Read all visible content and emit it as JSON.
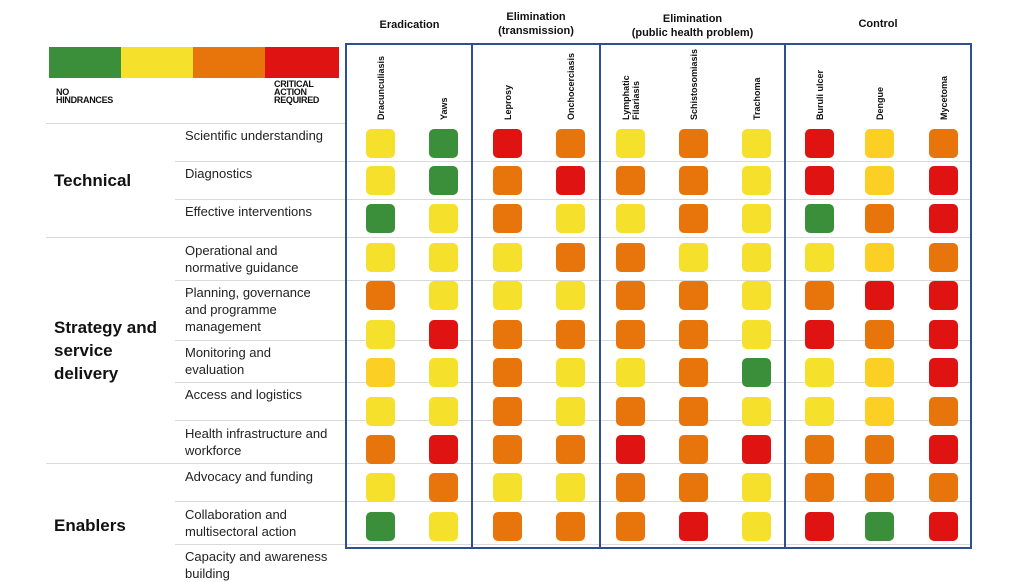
{
  "colors": {
    "green": "#3b8f3a",
    "yellow": "#f5e12c",
    "amber": "#fbcf24",
    "orange": "#e8750c",
    "red": "#e01313",
    "frame": "#2f4f8f"
  },
  "legend": {
    "swatches": [
      "green",
      "yellow",
      "orange",
      "red"
    ],
    "low_label": "NO HINDRANCES",
    "high_label": "CRITICAL ACTION REQUIRED"
  },
  "chart_data": {
    "type": "heatmap",
    "groups": [
      {
        "title": "Eradication",
        "columns": [
          "Dracunculiasis",
          "Yaws"
        ]
      },
      {
        "title": "Elimination (transmission)",
        "columns": [
          "Leprosy",
          "Onchocerciasis"
        ]
      },
      {
        "title": "Elimination (public health problem)",
        "columns": [
          "Lymphatic Filariasis",
          "Schistosomiasis",
          "Trachoma"
        ]
      },
      {
        "title": "Control",
        "columns": [
          "Buruli ulcer",
          "Dengue",
          "Mycetoma"
        ]
      }
    ],
    "categories": [
      {
        "title": "Technical",
        "rows": [
          "Scientific understanding",
          "Diagnostics",
          "Effective interventions"
        ]
      },
      {
        "title": "Strategy and service delivery",
        "rows": [
          "Operational and normative guidance",
          "Planning, governance and programme management",
          "Monitoring and evaluation",
          "Access and logistics",
          "Health infrastructure and workforce"
        ]
      },
      {
        "title": "Enablers",
        "rows": [
          "Advocacy and funding",
          "Collaboration and multisectoral action",
          "Capacity and awareness building"
        ]
      }
    ],
    "rows": [
      {
        "label": "Scientific understanding",
        "values": [
          "yellow",
          "green",
          "red",
          "orange",
          "yellow",
          "orange",
          "yellow",
          "red",
          "amber",
          "orange"
        ]
      },
      {
        "label": "Diagnostics",
        "values": [
          "yellow",
          "green",
          "orange",
          "red",
          "orange",
          "orange",
          "yellow",
          "red",
          "amber",
          "red"
        ]
      },
      {
        "label": "Effective interventions",
        "values": [
          "green",
          "yellow",
          "orange",
          "yellow",
          "yellow",
          "orange",
          "yellow",
          "green",
          "orange",
          "red"
        ]
      },
      {
        "label": "Operational and normative guidance",
        "values": [
          "yellow",
          "yellow",
          "yellow",
          "orange",
          "orange",
          "yellow",
          "yellow",
          "yellow",
          "amber",
          "orange"
        ]
      },
      {
        "label": "Planning, governance and programme management",
        "values": [
          "orange",
          "yellow",
          "yellow",
          "yellow",
          "orange",
          "orange",
          "yellow",
          "orange",
          "red",
          "red"
        ]
      },
      {
        "label": "Monitoring and evaluation",
        "values": [
          "yellow",
          "red",
          "orange",
          "orange",
          "orange",
          "orange",
          "yellow",
          "red",
          "orange",
          "red"
        ]
      },
      {
        "label": "Access and logistics",
        "values": [
          "amber",
          "yellow",
          "orange",
          "yellow",
          "yellow",
          "orange",
          "green",
          "yellow",
          "amber",
          "red"
        ]
      },
      {
        "label": "Health infrastructure and workforce",
        "values": [
          "yellow",
          "yellow",
          "orange",
          "yellow",
          "orange",
          "orange",
          "yellow",
          "yellow",
          "amber",
          "orange"
        ]
      },
      {
        "label": "Advocacy and funding",
        "values": [
          "orange",
          "red",
          "orange",
          "orange",
          "red",
          "orange",
          "red",
          "orange",
          "orange",
          "red"
        ]
      },
      {
        "label": "Collaboration and multisectoral action",
        "values": [
          "yellow",
          "orange",
          "yellow",
          "yellow",
          "orange",
          "orange",
          "yellow",
          "orange",
          "orange",
          "orange"
        ]
      },
      {
        "label": "Capacity and awareness building",
        "values": [
          "green",
          "yellow",
          "orange",
          "orange",
          "orange",
          "red",
          "yellow",
          "red",
          "green",
          "red"
        ]
      }
    ]
  }
}
